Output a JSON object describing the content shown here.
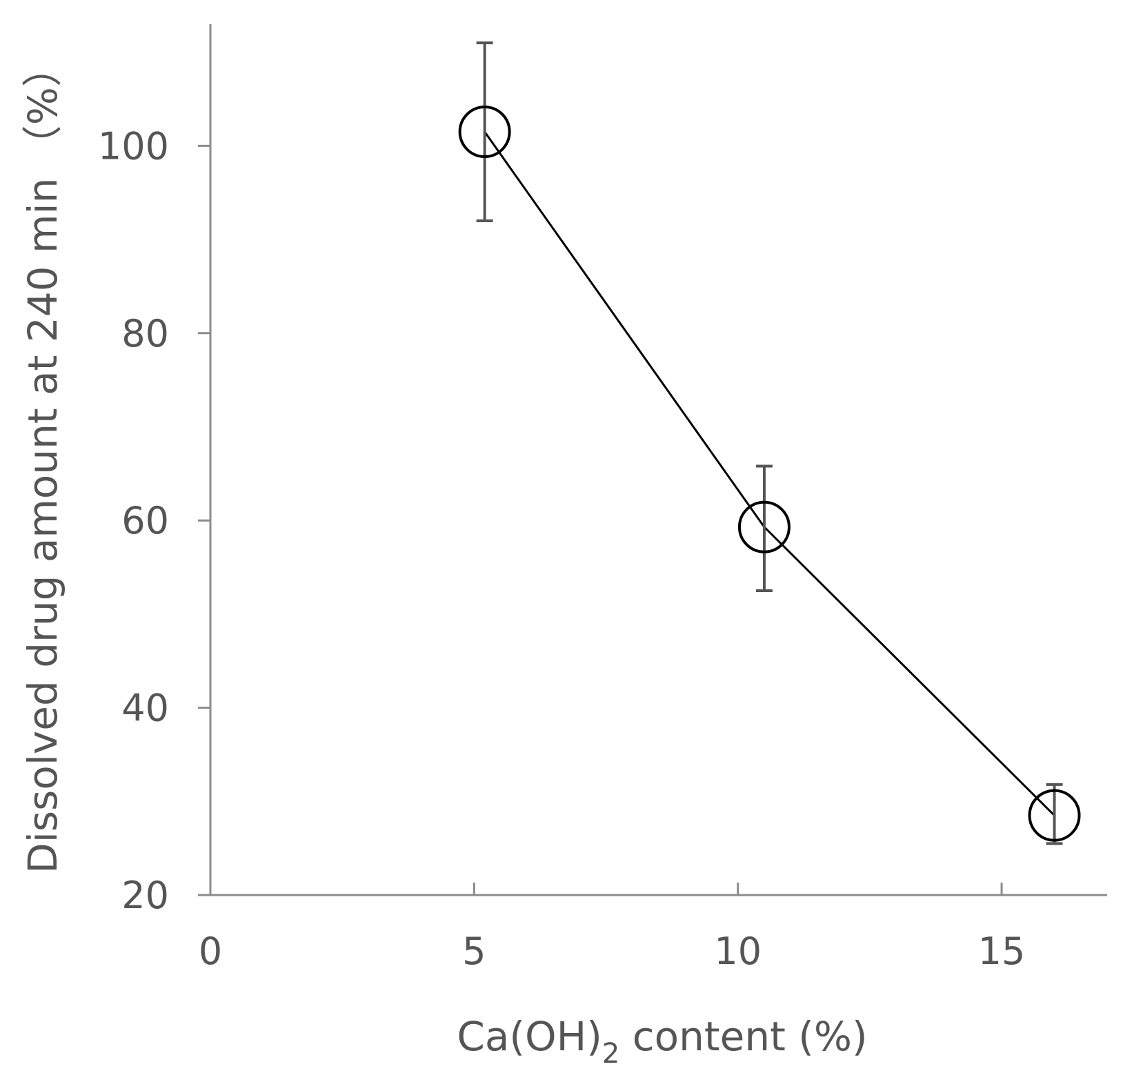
{
  "chart_data": {
    "type": "line",
    "title": "",
    "xlabel": {
      "main": "Ca(OH)",
      "sub": "2",
      "suffix": " content (%)"
    },
    "ylabel": "Dissolved drug amount at 240 min （%）",
    "xlim": [
      0,
      17
    ],
    "ylim": [
      20,
      113
    ],
    "x_ticks": [
      0,
      5,
      10,
      15
    ],
    "y_ticks": [
      20,
      40,
      60,
      80,
      100
    ],
    "grid": false,
    "legend": "none",
    "marker": "open-circle",
    "series": [
      {
        "x": [
          5.2,
          10.5,
          16.0
        ],
        "y": [
          101.5,
          59.3,
          28.5
        ],
        "error_low": [
          92.0,
          52.5,
          25.5
        ],
        "error_high": [
          111.0,
          65.8,
          31.8
        ]
      }
    ],
    "colors": {
      "line": "#000000",
      "axis": "#8c8c8c",
      "text": "#555555"
    }
  }
}
